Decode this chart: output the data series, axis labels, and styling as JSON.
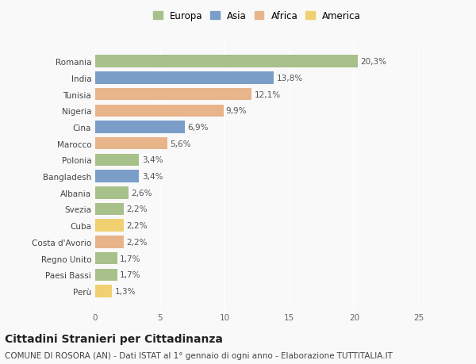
{
  "categories": [
    "Romania",
    "India",
    "Tunisia",
    "Nigeria",
    "Cina",
    "Marocco",
    "Polonia",
    "Bangladesh",
    "Albania",
    "Svezia",
    "Cuba",
    "Costa d'Avorio",
    "Regno Unito",
    "Paesi Bassi",
    "Perù"
  ],
  "values": [
    20.3,
    13.8,
    12.1,
    9.9,
    6.9,
    5.6,
    3.4,
    3.4,
    2.6,
    2.2,
    2.2,
    2.2,
    1.7,
    1.7,
    1.3
  ],
  "labels": [
    "20,3%",
    "13,8%",
    "12,1%",
    "9,9%",
    "6,9%",
    "5,6%",
    "3,4%",
    "3,4%",
    "2,6%",
    "2,2%",
    "2,2%",
    "2,2%",
    "1,7%",
    "1,7%",
    "1,3%"
  ],
  "continents": [
    "Europa",
    "Asia",
    "Africa",
    "Africa",
    "Asia",
    "Africa",
    "Europa",
    "Asia",
    "Europa",
    "Europa",
    "America",
    "Africa",
    "Europa",
    "Europa",
    "America"
  ],
  "continent_colors": {
    "Europa": "#a8c08a",
    "Asia": "#7b9ec9",
    "Africa": "#e8b48a",
    "America": "#f0d070"
  },
  "legend_order": [
    "Europa",
    "Asia",
    "Africa",
    "America"
  ],
  "title": "Cittadini Stranieri per Cittadinanza",
  "subtitle": "COMUNE DI ROSORA (AN) - Dati ISTAT al 1° gennaio di ogni anno - Elaborazione TUTTITALIA.IT",
  "xlim": [
    0,
    25
  ],
  "xticks": [
    0,
    5,
    10,
    15,
    20,
    25
  ],
  "background_color": "#f9f9f9",
  "title_fontsize": 10,
  "subtitle_fontsize": 7.5,
  "bar_height": 0.75
}
